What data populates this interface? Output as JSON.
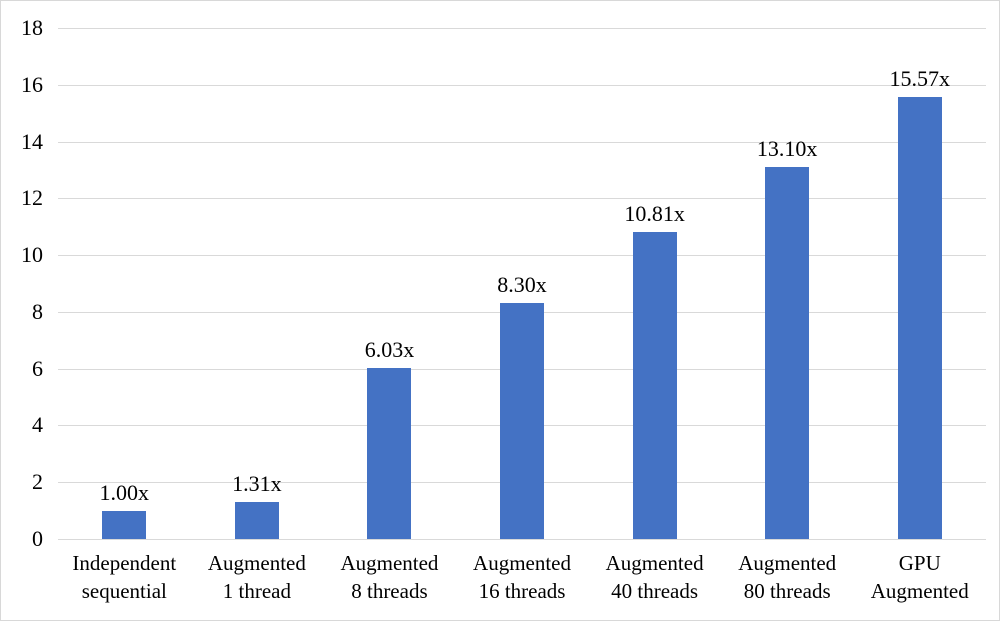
{
  "chart_data": {
    "type": "bar",
    "title": "",
    "xlabel": "",
    "ylabel": "",
    "categories": [
      "Independent\nsequential",
      "Augmented\n1 thread",
      "Augmented\n8 threads",
      "Augmented\n16 threads",
      "Augmented\n40 threads",
      "Augmented\n80 threads",
      "GPU\nAugmented"
    ],
    "values": [
      1.0,
      1.31,
      6.03,
      8.3,
      10.81,
      13.1,
      15.57
    ],
    "value_labels": [
      "1.00x",
      "1.31x",
      "6.03x",
      "8.30x",
      "10.81x",
      "13.10x",
      "15.57x"
    ],
    "y_ticks": [
      0,
      2,
      4,
      6,
      8,
      10,
      12,
      14,
      16,
      18
    ],
    "ylim": [
      0,
      18
    ],
    "grid": true,
    "legend": false,
    "layout": {
      "legend_position": "none",
      "value_labels_position": "above-bars"
    },
    "colors": {
      "bar": "#4472C4",
      "gridline": "#D9D9D9",
      "axis_line": "#D9D9D9",
      "text": "#000000",
      "border": "#D8D8D8",
      "background": "#FFFFFF"
    }
  }
}
